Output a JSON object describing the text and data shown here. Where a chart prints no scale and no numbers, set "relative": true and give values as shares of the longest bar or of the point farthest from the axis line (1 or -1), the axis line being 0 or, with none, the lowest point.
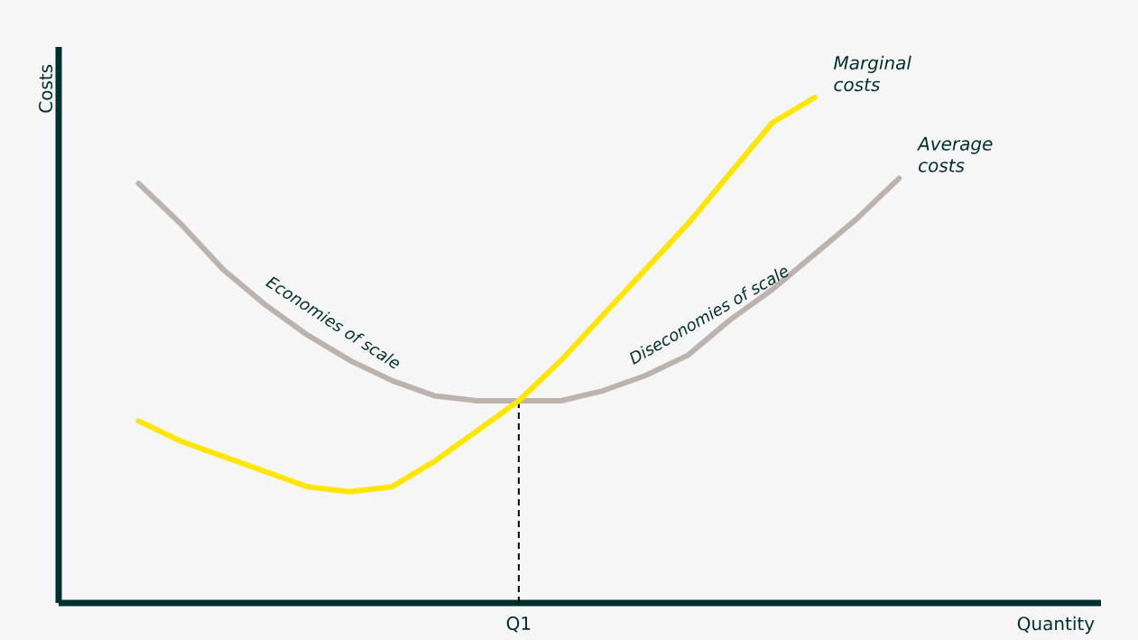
{
  "chart_data": {
    "type": "line",
    "relative": true,
    "ylabel": "Costs",
    "marker": "none",
    "categories": [
      null,
      null,
      null,
      null,
      null,
      null,
      null,
      null,
      null,
      null,
      null,
      null,
      null,
      null,
      null,
      null,
      null,
      null,
      null
    ],
    "annotations": [
      "Economies of scale",
      "Diseconomies of scale",
      "Q1",
      "Quantity"
    ],
    "series": [
      {
        "name": "Average costs",
        "color": "#bcb3ad",
        "values": [
          0.83,
          0.75,
          0.66,
          0.59,
          0.53,
          0.48,
          0.44,
          0.41,
          0.4,
          0.4,
          0.4,
          0.42,
          0.45,
          0.49,
          0.56,
          0.62,
          0.69,
          0.76,
          0.84
        ]
      },
      {
        "name": "Marginal costs",
        "color": "#ffe600",
        "values": [
          0.36,
          0.32,
          0.29,
          0.26,
          0.23,
          0.22,
          0.23,
          0.28,
          0.34,
          0.4,
          0.48,
          0.57,
          0.66,
          0.75,
          0.85,
          0.95,
          1.0,
          null,
          null
        ]
      }
    ]
  }
}
